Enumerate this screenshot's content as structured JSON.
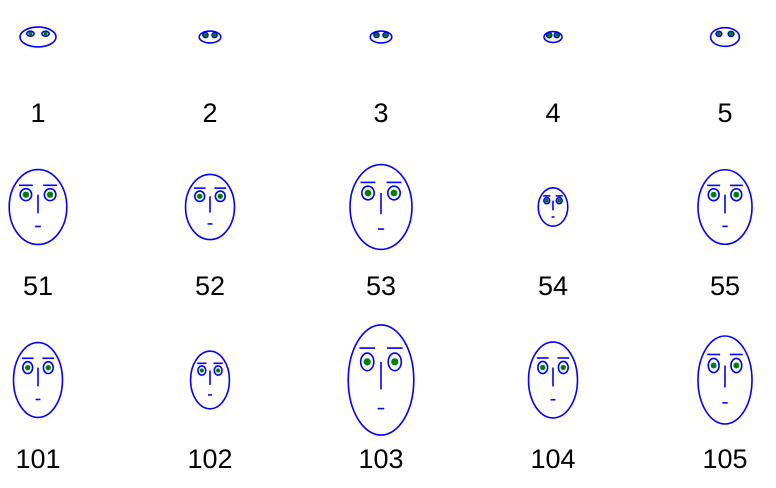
{
  "chart_data": {
    "type": "chernoff-faces",
    "title": "",
    "colors": {
      "face": "#0000ff",
      "pupil": "#008000",
      "label": "#000000"
    },
    "faces": [
      {
        "label": "1",
        "size": 0.5,
        "aspect": 0.55
      },
      {
        "label": "2",
        "size": 0.3,
        "aspect": 0.55
      },
      {
        "label": "3",
        "size": 0.3,
        "aspect": 0.55
      },
      {
        "label": "4",
        "size": 0.25,
        "aspect": 0.6
      },
      {
        "label": "5",
        "size": 0.4,
        "aspect": 0.65
      },
      {
        "label": "51",
        "size": 0.8,
        "aspect": 1.3
      },
      {
        "label": "52",
        "size": 0.68,
        "aspect": 1.33
      },
      {
        "label": "53",
        "size": 0.86,
        "aspect": 1.37
      },
      {
        "label": "54",
        "size": 0.41,
        "aspect": 1.3
      },
      {
        "label": "55",
        "size": 0.75,
        "aspect": 1.38
      },
      {
        "label": "101",
        "size": 0.68,
        "aspect": 1.53
      },
      {
        "label": "102",
        "size": 0.54,
        "aspect": 1.48
      },
      {
        "label": "103",
        "size": 0.91,
        "aspect": 1.68
      },
      {
        "label": "104",
        "size": 0.68,
        "aspect": 1.55
      },
      {
        "label": "105",
        "size": 0.75,
        "aspect": 1.63
      }
    ]
  }
}
